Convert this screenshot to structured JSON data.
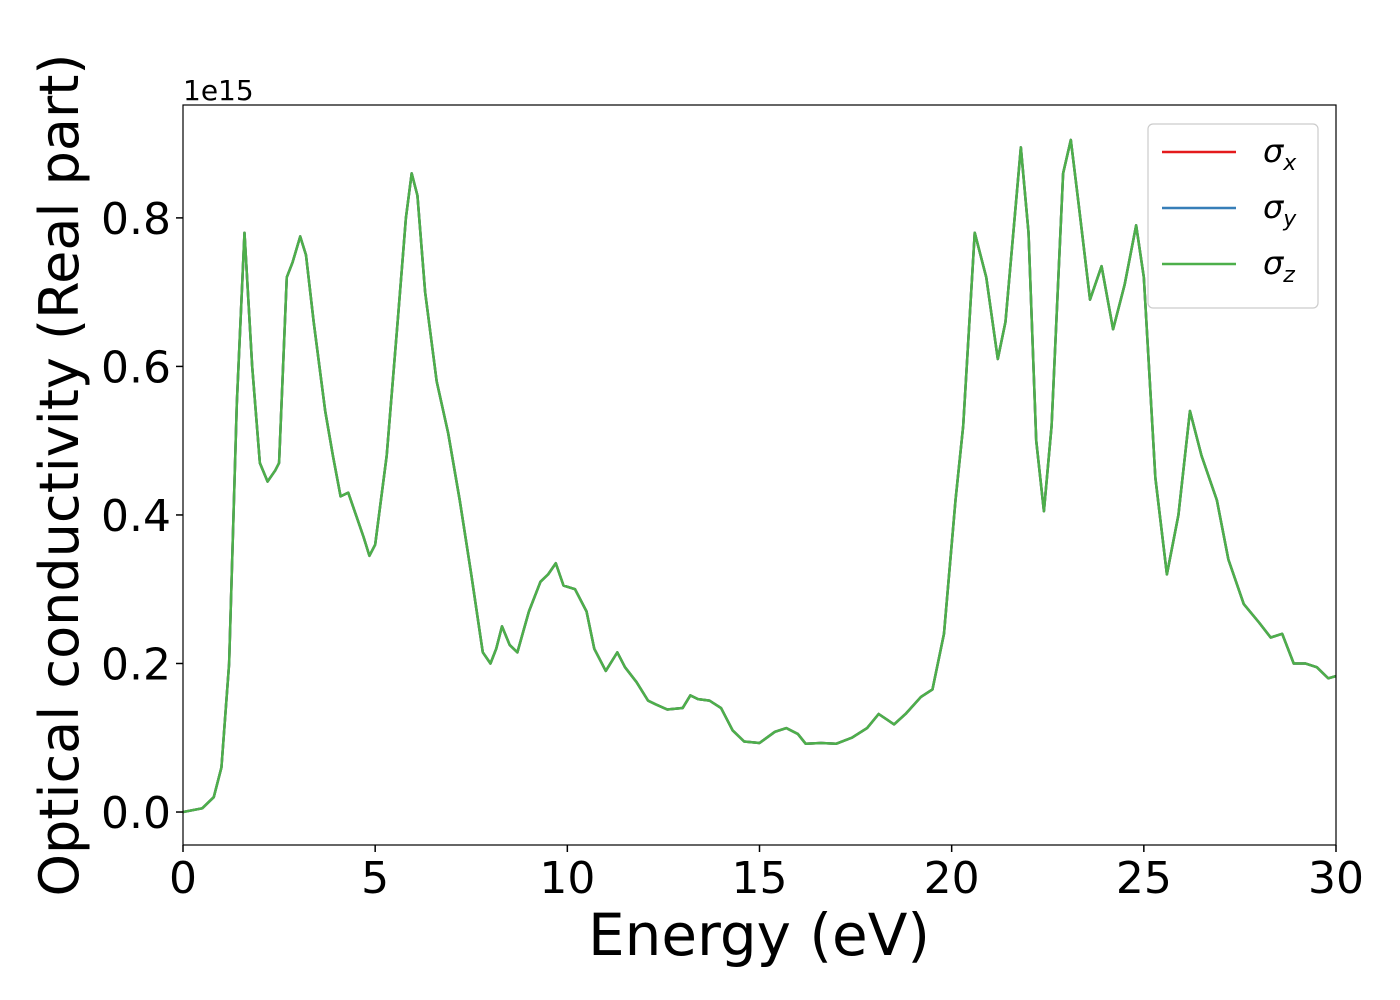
{
  "chart_data": {
    "type": "line",
    "xlabel": "Energy (eV)",
    "ylabel": "Optical conductivity (Real part)",
    "offset_label": "1e15",
    "legend": "upper right",
    "xlim": [
      0,
      30
    ],
    "ylim": [
      -0.0444,
      0.952
    ],
    "xticks": [
      0,
      5,
      10,
      15,
      20,
      25,
      30
    ],
    "yticks": [
      {
        "value": 0,
        "label": "0.0"
      },
      0.2,
      0.4,
      0.6,
      0.8
    ],
    "x": [
      0,
      0.5,
      0.8,
      1.0,
      1.2,
      1.4,
      1.6,
      1.8,
      2.0,
      2.2,
      2.4,
      2.5,
      2.7,
      2.85,
      3.05,
      3.2,
      3.4,
      3.7,
      3.9,
      4.1,
      4.3,
      4.5,
      4.7,
      4.85,
      5.0,
      5.3,
      5.6,
      5.8,
      5.95,
      6.1,
      6.3,
      6.6,
      6.9,
      7.2,
      7.5,
      7.8,
      8.0,
      8.15,
      8.3,
      8.5,
      8.7,
      9.0,
      9.3,
      9.5,
      9.7,
      9.9,
      10.2,
      10.5,
      10.7,
      11.0,
      11.3,
      11.5,
      11.8,
      12.1,
      12.3,
      12.6,
      13.0,
      13.2,
      13.4,
      13.7,
      14.0,
      14.3,
      14.6,
      15.0,
      15.4,
      15.7,
      16.0,
      16.2,
      16.6,
      17.0,
      17.4,
      17.8,
      18.1,
      18.5,
      18.8,
      19.2,
      19.5,
      19.8,
      20.1,
      20.3,
      20.6,
      20.9,
      21.2,
      21.4,
      21.8,
      22.0,
      22.2,
      22.4,
      22.6,
      22.9,
      23.1,
      23.3,
      23.6,
      23.9,
      24.2,
      24.5,
      24.8,
      25.0,
      25.3,
      25.6,
      25.9,
      26.2,
      26.5,
      26.9,
      27.2,
      27.6,
      28.0,
      28.3,
      28.6,
      28.9,
      29.2,
      29.5,
      29.8,
      30.0
    ],
    "series": [
      {
        "name": "σx",
        "color": "#e41a1c",
        "values": [
          0,
          0.005,
          0.02,
          0.06,
          0.2,
          0.55,
          0.78,
          0.6,
          0.47,
          0.445,
          0.46,
          0.47,
          0.72,
          0.74,
          0.775,
          0.75,
          0.66,
          0.54,
          0.48,
          0.425,
          0.43,
          0.4,
          0.37,
          0.345,
          0.36,
          0.48,
          0.67,
          0.8,
          0.86,
          0.83,
          0.7,
          0.58,
          0.51,
          0.42,
          0.32,
          0.215,
          0.2,
          0.22,
          0.25,
          0.225,
          0.215,
          0.27,
          0.31,
          0.32,
          0.335,
          0.305,
          0.3,
          0.27,
          0.22,
          0.19,
          0.215,
          0.195,
          0.175,
          0.15,
          0.145,
          0.138,
          0.14,
          0.157,
          0.152,
          0.15,
          0.14,
          0.11,
          0.095,
          0.093,
          0.108,
          0.113,
          0.105,
          0.092,
          0.093,
          0.092,
          0.1,
          0.113,
          0.132,
          0.118,
          0.132,
          0.155,
          0.165,
          0.24,
          0.42,
          0.52,
          0.78,
          0.72,
          0.61,
          0.66,
          0.895,
          0.78,
          0.5,
          0.405,
          0.52,
          0.86,
          0.905,
          0.82,
          0.69,
          0.735,
          0.65,
          0.71,
          0.79,
          0.72,
          0.45,
          0.32,
          0.4,
          0.54,
          0.48,
          0.42,
          0.34,
          0.28,
          0.255,
          0.235,
          0.24,
          0.2,
          0.2,
          0.195,
          0.18,
          0.183
        ]
      },
      {
        "name": "σy",
        "color": "#377eb8",
        "values": [
          0,
          0.005,
          0.02,
          0.06,
          0.2,
          0.55,
          0.78,
          0.6,
          0.47,
          0.445,
          0.46,
          0.47,
          0.72,
          0.74,
          0.775,
          0.75,
          0.66,
          0.54,
          0.48,
          0.425,
          0.43,
          0.4,
          0.37,
          0.345,
          0.36,
          0.48,
          0.67,
          0.8,
          0.86,
          0.83,
          0.7,
          0.58,
          0.51,
          0.42,
          0.32,
          0.215,
          0.2,
          0.22,
          0.25,
          0.225,
          0.215,
          0.27,
          0.31,
          0.32,
          0.335,
          0.305,
          0.3,
          0.27,
          0.22,
          0.19,
          0.215,
          0.195,
          0.175,
          0.15,
          0.145,
          0.138,
          0.14,
          0.157,
          0.152,
          0.15,
          0.14,
          0.11,
          0.095,
          0.093,
          0.108,
          0.113,
          0.105,
          0.092,
          0.093,
          0.092,
          0.1,
          0.113,
          0.132,
          0.118,
          0.132,
          0.155,
          0.165,
          0.24,
          0.42,
          0.52,
          0.78,
          0.72,
          0.61,
          0.66,
          0.895,
          0.78,
          0.5,
          0.405,
          0.52,
          0.86,
          0.905,
          0.82,
          0.69,
          0.735,
          0.65,
          0.71,
          0.79,
          0.72,
          0.45,
          0.32,
          0.4,
          0.54,
          0.48,
          0.42,
          0.34,
          0.28,
          0.255,
          0.235,
          0.24,
          0.2,
          0.2,
          0.195,
          0.18,
          0.183
        ]
      },
      {
        "name": "σz",
        "color": "#4daf4a",
        "values": [
          0,
          0.005,
          0.02,
          0.06,
          0.2,
          0.55,
          0.78,
          0.6,
          0.47,
          0.445,
          0.46,
          0.47,
          0.72,
          0.74,
          0.775,
          0.75,
          0.66,
          0.54,
          0.48,
          0.425,
          0.43,
          0.4,
          0.37,
          0.345,
          0.36,
          0.48,
          0.67,
          0.8,
          0.86,
          0.83,
          0.7,
          0.58,
          0.51,
          0.42,
          0.32,
          0.215,
          0.2,
          0.22,
          0.25,
          0.225,
          0.215,
          0.27,
          0.31,
          0.32,
          0.335,
          0.305,
          0.3,
          0.27,
          0.22,
          0.19,
          0.215,
          0.195,
          0.175,
          0.15,
          0.145,
          0.138,
          0.14,
          0.157,
          0.152,
          0.15,
          0.14,
          0.11,
          0.095,
          0.093,
          0.108,
          0.113,
          0.105,
          0.092,
          0.093,
          0.092,
          0.1,
          0.113,
          0.132,
          0.118,
          0.132,
          0.155,
          0.165,
          0.24,
          0.42,
          0.52,
          0.78,
          0.72,
          0.61,
          0.66,
          0.895,
          0.78,
          0.5,
          0.405,
          0.52,
          0.86,
          0.905,
          0.82,
          0.69,
          0.735,
          0.65,
          0.71,
          0.79,
          0.72,
          0.45,
          0.32,
          0.4,
          0.54,
          0.48,
          0.42,
          0.34,
          0.28,
          0.255,
          0.235,
          0.24,
          0.2,
          0.2,
          0.195,
          0.18,
          0.183
        ]
      }
    ]
  }
}
